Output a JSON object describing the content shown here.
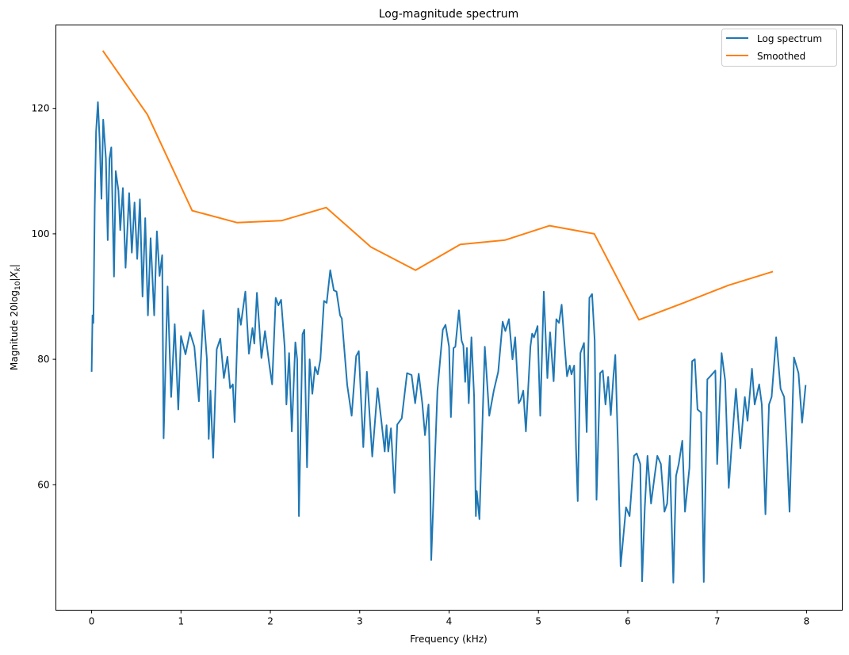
{
  "chart_data": {
    "type": "line",
    "title": "Log-magnitude spectrum",
    "xlabel": "Frequency (kHz)",
    "ylabel": {
      "prefix": "Magnitude 20log",
      "sub": "10",
      "bar_open": "|",
      "var": "X",
      "var_sub": "k",
      "bar_close": "|"
    },
    "xlim": [
      -0.4,
      8.4
    ],
    "ylim": [
      40,
      133.3
    ],
    "xticks": [
      0,
      1,
      2,
      3,
      4,
      5,
      6,
      7,
      8
    ],
    "yticks": [
      60,
      80,
      100,
      120
    ],
    "grid": false,
    "legend_position": "top-right",
    "series": [
      {
        "name": "Log spectrum",
        "color": "#1f77b4",
        "x": [
          0,
          0.01,
          0.02,
          0.035,
          0.05,
          0.07,
          0.09,
          0.11,
          0.13,
          0.16,
          0.18,
          0.2,
          0.22,
          0.25,
          0.27,
          0.3,
          0.32,
          0.35,
          0.38,
          0.42,
          0.45,
          0.48,
          0.51,
          0.54,
          0.57,
          0.6,
          0.63,
          0.66,
          0.7,
          0.73,
          0.76,
          0.79,
          0.806,
          0.85,
          0.89,
          0.93,
          0.97,
          1.0,
          1.05,
          1.1,
          1.15,
          1.2,
          1.25,
          1.29,
          1.31,
          1.33,
          1.36,
          1.4,
          1.44,
          1.48,
          1.52,
          1.55,
          1.58,
          1.6,
          1.64,
          1.67,
          1.72,
          1.76,
          1.8,
          1.82,
          1.85,
          1.9,
          1.94,
          1.99,
          2.02,
          2.06,
          2.09,
          2.12,
          2.16,
          2.18,
          2.21,
          2.24,
          2.28,
          2.3,
          2.32,
          2.36,
          2.38,
          2.41,
          2.44,
          2.47,
          2.5,
          2.53,
          2.56,
          2.6,
          2.63,
          2.67,
          2.71,
          2.74,
          2.78,
          2.8,
          2.86,
          2.88,
          2.91,
          2.96,
          2.99,
          3.04,
          3.08,
          3.14,
          3.2,
          3.24,
          3.28,
          3.3,
          3.32,
          3.35,
          3.39,
          3.42,
          3.47,
          3.53,
          3.58,
          3.62,
          3.66,
          3.7,
          3.73,
          3.77,
          3.79,
          3.8,
          3.87,
          3.93,
          3.96,
          4.0,
          4.02,
          4.05,
          4.07,
          4.11,
          4.14,
          4.16,
          4.18,
          4.2,
          4.22,
          4.25,
          4.28,
          4.3,
          4.31,
          4.34,
          4.4,
          4.45,
          4.5,
          4.55,
          4.6,
          4.63,
          4.67,
          4.71,
          4.74,
          4.78,
          4.8,
          4.83,
          4.86,
          4.91,
          4.93,
          4.95,
          4.99,
          5.02,
          5.06,
          5.1,
          5.13,
          5.17,
          5.2,
          5.23,
          5.26,
          5.29,
          5.32,
          5.35,
          5.37,
          5.4,
          5.42,
          5.44,
          5.47,
          5.51,
          5.54,
          5.57,
          5.6,
          5.63,
          5.65,
          5.69,
          5.72,
          5.75,
          5.78,
          5.81,
          5.84,
          5.86,
          5.89,
          5.92,
          5.98,
          6.02,
          6.07,
          6.1,
          6.14,
          6.16,
          6.19,
          6.22,
          6.26,
          6.3,
          6.33,
          6.37,
          6.41,
          6.44,
          6.47,
          6.51,
          6.54,
          6.57,
          6.61,
          6.64,
          6.69,
          6.72,
          6.75,
          6.78,
          6.82,
          6.85,
          6.89,
          6.93,
          6.98,
          7.0,
          7.05,
          7.09,
          7.13,
          7.16,
          7.21,
          7.26,
          7.31,
          7.34,
          7.39,
          7.42,
          7.47,
          7.5,
          7.54,
          7.58,
          7.61,
          7.66,
          7.71,
          7.75,
          7.78,
          7.81,
          7.86,
          7.91,
          7.95,
          7.99
        ],
        "y": [
          78,
          87,
          85.8,
          104.3,
          116.3,
          121,
          115,
          105.6,
          118.2,
          112,
          99,
          112,
          113.8,
          93.2,
          110,
          106.9,
          100.6,
          107.3,
          94.6,
          106.5,
          97,
          105,
          96,
          105.5,
          90,
          102.5,
          87,
          99.3,
          87,
          100.4,
          93.3,
          96.6,
          67.4,
          91.6,
          74,
          85.6,
          72,
          83.7,
          80.8,
          84.3,
          82,
          73.3,
          87.8,
          80,
          67.3,
          75,
          64.3,
          81.6,
          83.3,
          77,
          80.4,
          75.4,
          76,
          70,
          88.1,
          85.5,
          90.8,
          80.9,
          85,
          82.5,
          90.6,
          80.2,
          84.5,
          79,
          76,
          89.8,
          88.6,
          89.5,
          82,
          72.8,
          81,
          68.5,
          82.7,
          80,
          55,
          84,
          84.7,
          62.8,
          80,
          74.5,
          78.8,
          77.6,
          80,
          89.3,
          89,
          94.2,
          91,
          90.8,
          87,
          86.5,
          75.9,
          74,
          71,
          80.5,
          81.3,
          66,
          78,
          64.5,
          75.4,
          70.5,
          65.3,
          69.5,
          65.3,
          69,
          58.7,
          69.6,
          70.6,
          77.8,
          77.5,
          73,
          77.7,
          73,
          67.9,
          72.8,
          60,
          48,
          75,
          84.7,
          85.5,
          82,
          70.8,
          81.8,
          82,
          87.8,
          83,
          82.2,
          76.4,
          81.8,
          73,
          83.5,
          74,
          55,
          59,
          54.5,
          82,
          71,
          75,
          78,
          86,
          84.5,
          86.4,
          80,
          83.5,
          73,
          73.5,
          75,
          68.5,
          82,
          84.1,
          83.5,
          85.3,
          71,
          90.8,
          77,
          84.3,
          76.5,
          86.4,
          85.8,
          88.7,
          82.8,
          77.3,
          79,
          77.6,
          79,
          66,
          57.4,
          81,
          82.6,
          68.4,
          89.8,
          90.4,
          83,
          57.6,
          77.8,
          78.2,
          72.8,
          77.2,
          71.1,
          77.4,
          80.7,
          65.8,
          47,
          56.4,
          55,
          64.6,
          65,
          63.3,
          44.6,
          56.4,
          64.6,
          57,
          61.4,
          64.6,
          63.3,
          55.7,
          57,
          64.6,
          44.4,
          61.4,
          63.3,
          67,
          55.7,
          62.7,
          79.7,
          80,
          72,
          71.5,
          44.5,
          76.8,
          77.4,
          78.2,
          63.3,
          81,
          76.6,
          59.5,
          65.7,
          75.3,
          65.8,
          74,
          70.2,
          78.5,
          72.8,
          76,
          72.8,
          55.3,
          72.8,
          74,
          83.5,
          75.3,
          74,
          65.8,
          55.7,
          80.3,
          77.8,
          69.9,
          75.9
        ]
      },
      {
        "name": "Smoothed",
        "color": "#ff7f0e",
        "x": [
          0.125,
          0.625,
          1.125,
          1.625,
          2.125,
          2.625,
          3.125,
          3.625,
          4.125,
          4.625,
          5.125,
          5.625,
          6.125,
          6.625,
          7.125,
          7.625
        ],
        "y": [
          129.2,
          119.0,
          103.7,
          101.8,
          102.1,
          104.2,
          97.9,
          94.2,
          98.3,
          99.0,
          101.3,
          100.0,
          86.3,
          89.0,
          91.8,
          94.0
        ]
      }
    ]
  }
}
